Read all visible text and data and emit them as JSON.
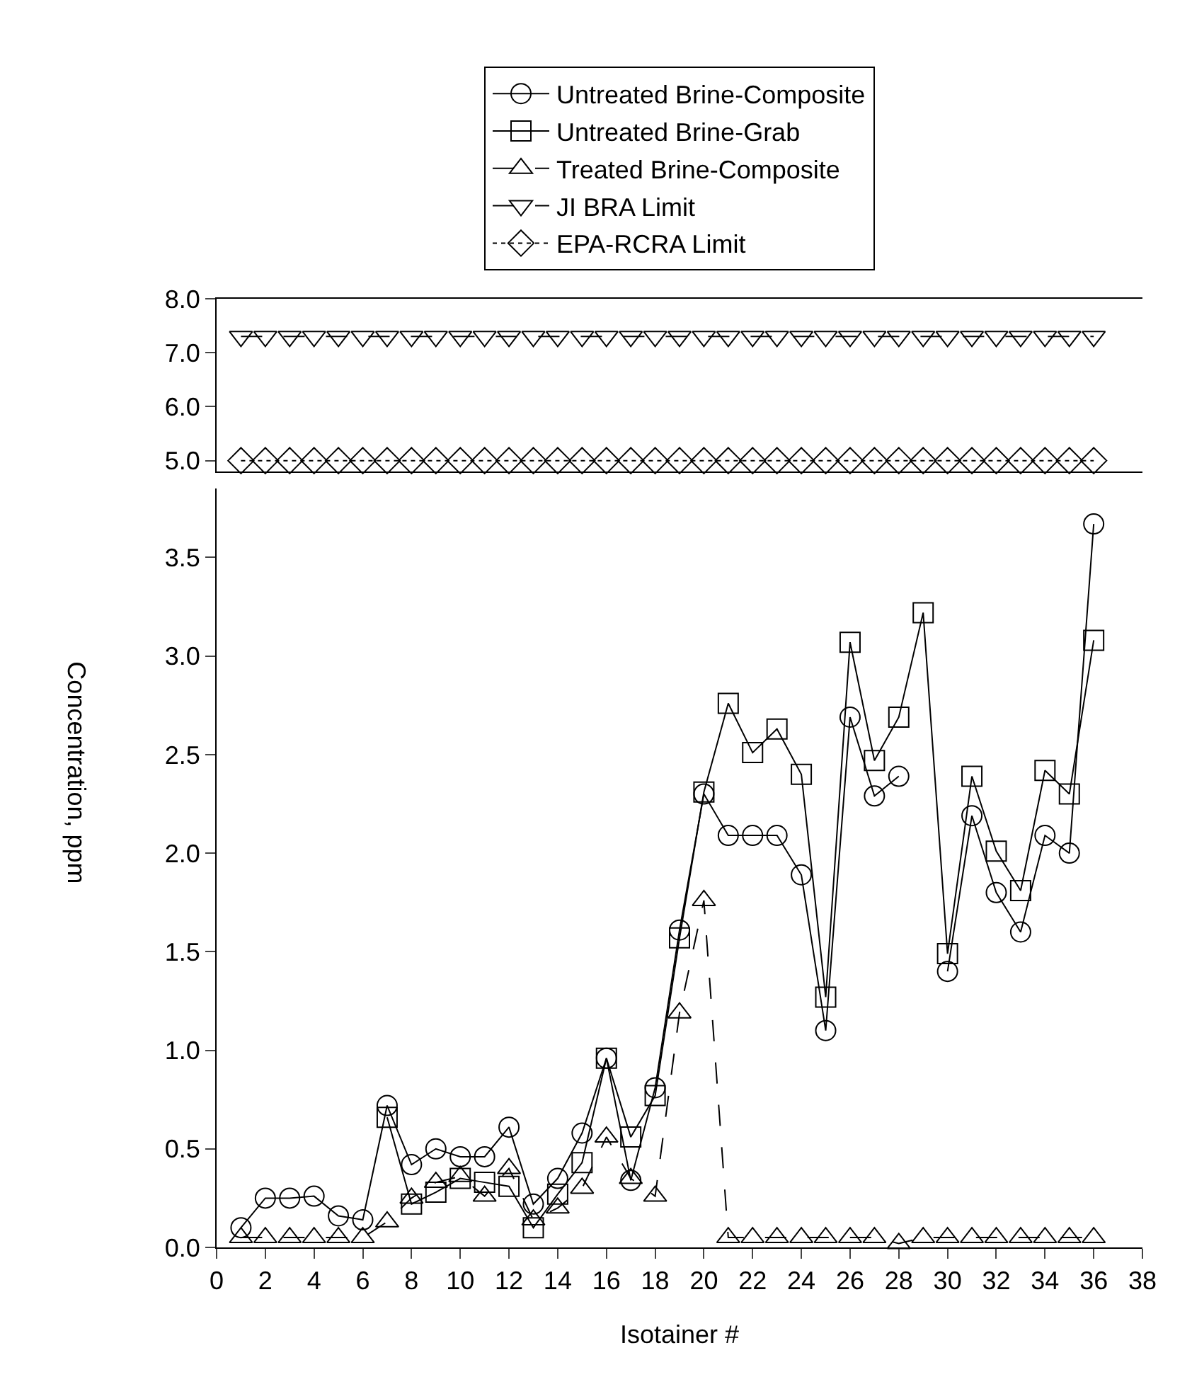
{
  "chart_data": [
    {
      "type": "line",
      "xlim": [
        0,
        38
      ],
      "xticks": [
        0,
        2,
        4,
        6,
        8,
        10,
        12,
        14,
        16,
        18,
        20,
        22,
        24,
        26,
        28,
        30,
        32,
        34,
        36,
        38
      ],
      "ylim": [
        4.8,
        8.0
      ],
      "yticks": [
        {
          "value": 5,
          "label": "5.0"
        },
        {
          "value": 6,
          "label": "6.0"
        },
        {
          "value": 7,
          "label": "7.0"
        },
        {
          "value": 8,
          "label": "8.0"
        }
      ],
      "tick_labels": "y",
      "grid": false,
      "legend": "top",
      "x": [
        1,
        2,
        3,
        4,
        5,
        6,
        7,
        8,
        9,
        10,
        11,
        12,
        13,
        14,
        15,
        16,
        17,
        18,
        19,
        20,
        21,
        22,
        23,
        24,
        25,
        26,
        27,
        28,
        29,
        30,
        31,
        32,
        33,
        34,
        35,
        36
      ],
      "series": [
        {
          "name": "JI BRA Limit",
          "color": "#000000",
          "marker": "triangle-down",
          "line_style": "longdash",
          "values": [
            7.3,
            7.3,
            7.3,
            7.3,
            7.3,
            7.3,
            7.3,
            7.3,
            7.3,
            7.3,
            7.3,
            7.3,
            7.3,
            7.3,
            7.3,
            7.3,
            7.3,
            7.3,
            7.3,
            7.3,
            7.3,
            7.3,
            7.3,
            7.3,
            7.3,
            7.3,
            7.3,
            7.3,
            7.3,
            7.3,
            7.3,
            7.3,
            7.3,
            7.3,
            7.3,
            7.3
          ]
        },
        {
          "name": "EPA-RCRA Limit",
          "color": "#000000",
          "marker": "diamond",
          "line_style": "dotted",
          "values": [
            5.0,
            5.0,
            5.0,
            5.0,
            5.0,
            5.0,
            5.0,
            5.0,
            5.0,
            5.0,
            5.0,
            5.0,
            5.0,
            5.0,
            5.0,
            5.0,
            5.0,
            5.0,
            5.0,
            5.0,
            5.0,
            5.0,
            5.0,
            5.0,
            5.0,
            5.0,
            5.0,
            5.0,
            5.0,
            5.0,
            5.0,
            5.0,
            5.0,
            5.0,
            5.0,
            5.0
          ]
        }
      ]
    },
    {
      "type": "line",
      "xlabel": "Isotainer #",
      "ylabel": "Concentration, ppm",
      "xlim": [
        0,
        38
      ],
      "xticks": [
        0,
        2,
        4,
        6,
        8,
        10,
        12,
        14,
        16,
        18,
        20,
        22,
        24,
        26,
        28,
        30,
        32,
        34,
        36,
        38
      ],
      "ylim": [
        0,
        3.85
      ],
      "yticks": [
        {
          "value": 0,
          "label": "0.0"
        },
        {
          "value": 0.5,
          "label": "0.5"
        },
        {
          "value": 1,
          "label": "1.0"
        },
        {
          "value": 1.5,
          "label": "1.5"
        },
        {
          "value": 2,
          "label": "2.0"
        },
        {
          "value": 2.5,
          "label": "2.5"
        },
        {
          "value": 3,
          "label": "3.0"
        },
        {
          "value": 3.5,
          "label": "3.5"
        }
      ],
      "grid": false,
      "legend": "top",
      "x": [
        1,
        2,
        3,
        4,
        5,
        6,
        7,
        8,
        9,
        10,
        11,
        12,
        13,
        14,
        15,
        16,
        17,
        18,
        19,
        20,
        21,
        22,
        23,
        24,
        25,
        26,
        27,
        28,
        29,
        30,
        31,
        32,
        33,
        34,
        35,
        36
      ],
      "series": [
        {
          "name": "Untreated Brine-Composite",
          "color": "#000000",
          "marker": "circle",
          "line_style": "solid",
          "values": [
            0.1,
            0.25,
            0.25,
            0.26,
            0.16,
            0.14,
            0.72,
            0.42,
            0.5,
            0.46,
            0.46,
            0.61,
            0.22,
            0.35,
            0.58,
            0.96,
            0.34,
            0.81,
            1.61,
            2.3,
            2.09,
            2.09,
            2.09,
            1.89,
            1.1,
            2.69,
            2.29,
            2.39,
            null,
            1.4,
            2.19,
            1.8,
            1.6,
            2.09,
            2.0,
            3.67
          ]
        },
        {
          "name": "Untreated Brine-Grab",
          "color": "#000000",
          "marker": "square",
          "line_style": "solid",
          "values": [
            null,
            null,
            null,
            null,
            null,
            null,
            0.66,
            0.22,
            0.28,
            0.35,
            0.33,
            0.31,
            0.1,
            0.27,
            0.43,
            0.96,
            0.56,
            0.77,
            1.57,
            2.31,
            2.76,
            2.51,
            2.63,
            2.4,
            1.27,
            3.07,
            2.47,
            2.69,
            3.22,
            1.49,
            2.39,
            2.01,
            1.81,
            2.42,
            2.3,
            3.08
          ]
        },
        {
          "name": "Treated Brine-Composite",
          "color": "#000000",
          "marker": "triangle",
          "line_style": "longdash",
          "values": [
            0.05,
            0.05,
            0.05,
            0.05,
            0.05,
            0.05,
            0.13,
            0.25,
            0.33,
            0.36,
            0.26,
            0.4,
            0.14,
            0.2,
            0.3,
            0.56,
            0.35,
            0.26,
            1.19,
            1.76,
            0.05,
            0.05,
            0.05,
            0.05,
            0.05,
            0.05,
            0.05,
            0.02,
            0.05,
            0.05,
            0.05,
            0.05,
            0.05,
            0.05,
            0.05,
            0.05
          ]
        }
      ]
    }
  ]
}
